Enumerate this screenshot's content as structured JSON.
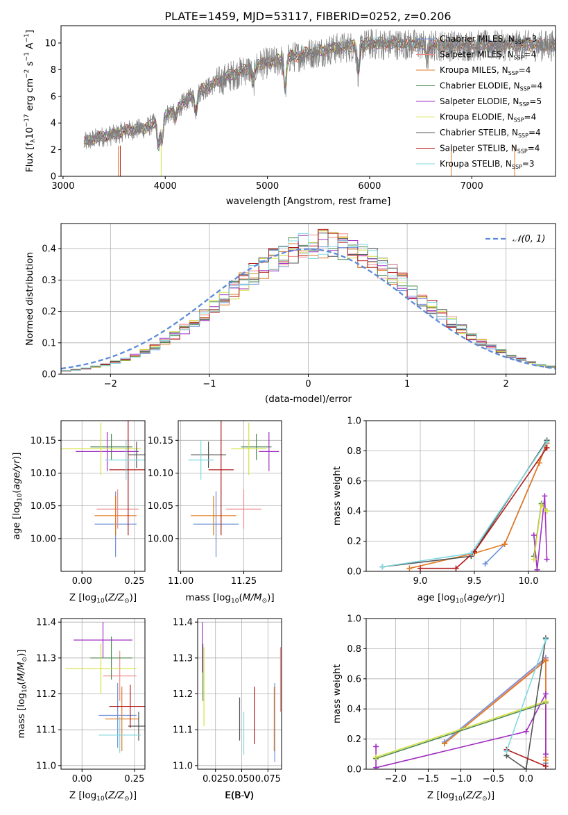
{
  "title": "PLATE=1459, MJD=53117, FIBERID=0252, z=0.206",
  "colors": {
    "Chabrier MILES": "#6a8fd8",
    "Salpeter MILES": "#f08a8a",
    "Kroupa MILES": "#e07a20",
    "Chabrier ELODIE": "#4f8a50",
    "Salpeter ELODIE": "#a030c0",
    "Kroupa ELODIE": "#d4e040",
    "Chabrier STELIB": "#555555",
    "Salpeter STELIB": "#b01818",
    "Kroupa STELIB": "#80d8e0",
    "data": "#808080"
  },
  "chart_data": [
    {
      "id": "spectrum",
      "type": "line",
      "title": "PLATE=1459, MJD=53117, FIBERID=0252, z=0.206",
      "xlabel": "wavelength [Angstrom, rest frame]",
      "ylabel": "Flux [f$_\\lambda$10$^{-17}$ erg cm$^{-2}$ s$^{-1}$ A$^{-1}$]",
      "xlim": [
        2980,
        7820
      ],
      "ylim": [
        0,
        11.3
      ],
      "xticks": [
        "3000",
        "4000",
        "5000",
        "6000",
        "7000"
      ],
      "yticks": [
        "0",
        "2",
        "4",
        "6",
        "8",
        "10"
      ],
      "legend_position": "upper right",
      "legend": [
        {
          "name": "Chabrier MILES",
          "nssp": "3"
        },
        {
          "name": "Salpeter MILES",
          "nssp": "4"
        },
        {
          "name": "Kroupa MILES",
          "nssp": "4"
        },
        {
          "name": "Chabrier ELODIE",
          "nssp": "4"
        },
        {
          "name": "Salpeter ELODIE",
          "nssp": "5"
        },
        {
          "name": "Kroupa ELODIE",
          "nssp": "4"
        },
        {
          "name": "Chabrier STELIB",
          "nssp": "4"
        },
        {
          "name": "Salpeter STELIB",
          "nssp": "4"
        },
        {
          "name": "Kroupa STELIB",
          "nssp": "3"
        }
      ],
      "data_envelope": {
        "x": [
          3200,
          3300,
          3400,
          3500,
          3600,
          3700,
          3800,
          3900,
          4000,
          4100,
          4200,
          4300,
          4400,
          4500,
          4600,
          4700,
          4800,
          4900,
          5000,
          5100,
          5200,
          5300,
          5400,
          5500,
          5600,
          5700,
          5800,
          5900,
          6000,
          6200,
          6400,
          6600,
          6800,
          7000,
          7200,
          7400,
          7600,
          7800
        ],
        "y": [
          2.5,
          2.8,
          3.0,
          3.1,
          3.4,
          3.5,
          3.6,
          4.0,
          4.6,
          5.0,
          5.6,
          6.2,
          6.6,
          7.0,
          7.4,
          7.7,
          8.0,
          8.3,
          8.5,
          8.6,
          8.9,
          9.0,
          9.2,
          9.3,
          9.5,
          9.6,
          9.7,
          9.8,
          9.9,
          9.9,
          9.9,
          9.8,
          9.8,
          9.8,
          9.8,
          9.8,
          9.8,
          9.8
        ]
      }
    },
    {
      "id": "residuals",
      "type": "histogram",
      "xlabel": "(data-model)/error",
      "ylabel": "Normed distribution",
      "xlim": [
        -2.5,
        2.5
      ],
      "ylim": [
        0,
        0.48
      ],
      "xticks": [
        "−2",
        "−1",
        "0",
        "1",
        "2"
      ],
      "yticks": [
        "0.0",
        "0.1",
        "0.2",
        "0.3",
        "0.4"
      ],
      "grid": true,
      "legend": "N(0,1)",
      "normal_curve": {
        "mean": 0,
        "sigma": 1
      },
      "bin_width": 0.1
    },
    {
      "id": "age_vs_Z",
      "type": "errorbar",
      "xlabel": "Z [log10(Z/Z⊙)]",
      "ylabel": "age [log10(age/yr)]",
      "xlim": [
        -0.1,
        0.3
      ],
      "ylim": [
        9.95,
        10.18
      ],
      "xticks": [
        "0.00",
        "0.25"
      ],
      "yticks": [
        "10.00",
        "10.05",
        "10.10",
        "10.15"
      ],
      "grid": true,
      "points": [
        {
          "model": "Chabrier MILES",
          "x": 0.16,
          "xerr": 0.1,
          "y": 10.022,
          "yerr": 0.05
        },
        {
          "model": "Salpeter MILES",
          "x": 0.17,
          "xerr": 0.1,
          "y": 10.045,
          "yerr": 0.03
        },
        {
          "model": "Kroupa MILES",
          "x": 0.16,
          "xerr": 0.1,
          "y": 10.035,
          "yerr": 0.03
        },
        {
          "model": "Chabrier ELODIE",
          "x": 0.14,
          "xerr": 0.1,
          "y": 10.14,
          "yerr": 0.02
        },
        {
          "model": "Salpeter ELODIE",
          "x": 0.12,
          "xerr": 0.15,
          "y": 10.133,
          "yerr": 0.03
        },
        {
          "model": "Kroupa ELODIE",
          "x": 0.09,
          "xerr": 0.19,
          "y": 10.137,
          "yerr": 0.04
        },
        {
          "model": "Chabrier STELIB",
          "x": 0.26,
          "xerr": 0.04,
          "y": 10.128,
          "yerr": 0.02
        },
        {
          "model": "Salpeter STELIB",
          "x": 0.22,
          "xerr": 0.09,
          "y": 10.105,
          "yerr": 0.1
        },
        {
          "model": "Kroupa STELIB",
          "x": 0.21,
          "xerr": 0.1,
          "y": 10.12,
          "yerr": 0.03
        }
      ]
    },
    {
      "id": "age_vs_mass",
      "type": "errorbar",
      "xlabel": "mass [log10(M/M⊙)]",
      "ylabel": "",
      "xlim": [
        10.99,
        11.4
      ],
      "ylim": [
        9.95,
        10.18
      ],
      "xticks": [
        "11.00",
        "11.25"
      ],
      "yticks": [
        "10.00",
        "10.05",
        "10.10",
        "10.15"
      ],
      "grid": true,
      "points": [
        {
          "model": "Chabrier MILES",
          "x": 11.14,
          "xerr": 0.09,
          "y": 10.022,
          "yerr": 0.05
        },
        {
          "model": "Salpeter MILES",
          "x": 11.25,
          "xerr": 0.07,
          "y": 10.045,
          "yerr": 0.03
        },
        {
          "model": "Kroupa MILES",
          "x": 11.13,
          "xerr": 0.09,
          "y": 10.035,
          "yerr": 0.03
        },
        {
          "model": "Chabrier ELODIE",
          "x": 11.3,
          "xerr": 0.06,
          "y": 10.14,
          "yerr": 0.02
        },
        {
          "model": "Salpeter ELODIE",
          "x": 11.35,
          "xerr": 0.04,
          "y": 10.133,
          "yerr": 0.03
        },
        {
          "model": "Kroupa ELODIE",
          "x": 11.27,
          "xerr": 0.07,
          "y": 10.137,
          "yerr": 0.04
        },
        {
          "model": "Chabrier STELIB",
          "x": 11.11,
          "xerr": 0.07,
          "y": 10.128,
          "yerr": 0.02
        },
        {
          "model": "Salpeter STELIB",
          "x": 11.16,
          "xerr": 0.05,
          "y": 10.105,
          "yerr": 0.1
        },
        {
          "model": "Kroupa STELIB",
          "x": 11.08,
          "xerr": 0.05,
          "y": 10.12,
          "yerr": 0.03
        }
      ]
    },
    {
      "id": "mass_weight_vs_age",
      "type": "line",
      "xlabel": "age [log10(age/yr)]",
      "ylabel": "mass weight",
      "xlim": [
        8.5,
        10.25
      ],
      "ylim": [
        0,
        1.0
      ],
      "xticks": [
        "9.0",
        "9.5",
        "10.0"
      ],
      "yticks": [
        "0.0",
        "0.2",
        "0.4",
        "0.6",
        "0.8",
        "1.0"
      ],
      "grid": true,
      "series": [
        {
          "model": "Chabrier MILES",
          "x": [
            9.6,
            9.78,
            10.1,
            10.17
          ],
          "y": [
            0.05,
            0.18,
            0.72,
            0.86
          ]
        },
        {
          "model": "Salpeter MILES",
          "x": [
            9.78,
            10.1,
            10.17
          ],
          "y": [
            0.18,
            0.72,
            0.85
          ]
        },
        {
          "model": "Kroupa MILES",
          "x": [
            8.9,
            9.5,
            9.78,
            10.1,
            10.17
          ],
          "y": [
            0.02,
            0.12,
            0.18,
            0.72,
            0.85
          ]
        },
        {
          "model": "Chabrier ELODIE",
          "x": [
            10.05,
            10.12,
            10.17
          ],
          "y": [
            0.1,
            0.45,
            0.4
          ]
        },
        {
          "model": "Salpeter ELODIE",
          "x": [
            10.05,
            10.08,
            10.15,
            10.17
          ],
          "y": [
            0.24,
            0.01,
            0.5,
            0.08
          ]
        },
        {
          "model": "Kroupa ELODIE",
          "x": [
            10.05,
            10.12,
            10.17
          ],
          "y": [
            0.08,
            0.44,
            0.4
          ]
        },
        {
          "model": "Chabrier STELIB",
          "x": [
            8.65,
            9.47,
            10.17
          ],
          "y": [
            0.03,
            0.1,
            0.87
          ]
        },
        {
          "model": "Salpeter STELIB",
          "x": [
            9.0,
            9.33,
            9.5,
            10.17
          ],
          "y": [
            0.02,
            0.02,
            0.13,
            0.82
          ]
        },
        {
          "model": "Kroupa STELIB",
          "x": [
            8.65,
            9.47,
            10.17
          ],
          "y": [
            0.03,
            0.12,
            0.86
          ]
        }
      ]
    },
    {
      "id": "mass_vs_Z",
      "type": "errorbar",
      "xlabel": "Z [log10(Z/Z⊙)]",
      "ylabel": "mass [log10(M/M⊙)]",
      "xlim": [
        -0.1,
        0.3
      ],
      "ylim": [
        10.99,
        11.41
      ],
      "xticks": [
        "0.00",
        "0.25"
      ],
      "yticks": [
        "11.0",
        "11.1",
        "11.2",
        "11.3",
        "11.4"
      ],
      "grid": true,
      "points": [
        {
          "model": "Chabrier MILES",
          "x": 0.17,
          "xerr": 0.09,
          "y": 11.14,
          "yerr": 0.09
        },
        {
          "model": "Salpeter MILES",
          "x": 0.18,
          "xerr": 0.08,
          "y": 11.25,
          "yerr": 0.07
        },
        {
          "model": "Kroupa MILES",
          "x": 0.19,
          "xerr": 0.08,
          "y": 11.13,
          "yerr": 0.09
        },
        {
          "model": "Chabrier ELODIE",
          "x": 0.14,
          "xerr": 0.1,
          "y": 11.3,
          "yerr": 0.06
        },
        {
          "model": "Salpeter ELODIE",
          "x": 0.1,
          "xerr": 0.14,
          "y": 11.35,
          "yerr": 0.05
        },
        {
          "model": "Kroupa ELODIE",
          "x": 0.09,
          "xerr": 0.17,
          "y": 11.27,
          "yerr": 0.07
        },
        {
          "model": "Chabrier STELIB",
          "x": 0.27,
          "xerr": 0.05,
          "y": 11.11,
          "yerr": 0.04
        },
        {
          "model": "Salpeter STELIB",
          "x": 0.23,
          "xerr": 0.1,
          "y": 11.165,
          "yerr": 0.06
        },
        {
          "model": "Kroupa STELIB",
          "x": 0.18,
          "xerr": 0.1,
          "y": 11.085,
          "yerr": 0.05
        }
      ]
    },
    {
      "id": "mass_vs_ebv",
      "type": "errorbar",
      "xlabel": "E(B-V)",
      "ylabel": "",
      "xlim": [
        0.008,
        0.088
      ],
      "ylim": [
        10.99,
        11.41
      ],
      "xticks": [
        "0.025",
        "0.050",
        "0.075"
      ],
      "yticks": [
        "11.0",
        "11.1",
        "11.2",
        "11.3",
        "11.4"
      ],
      "grid": true,
      "points": [
        {
          "model": "Chabrier MILES",
          "x": 0.0815,
          "y": 11.12,
          "yerr": 0.11
        },
        {
          "model": "Salpeter MILES",
          "x": 0.087,
          "y": 11.24,
          "yerr": 0.09
        },
        {
          "model": "Kroupa MILES",
          "x": 0.081,
          "y": 11.13,
          "yerr": 0.09
        },
        {
          "model": "Chabrier ELODIE",
          "x": 0.013,
          "y": 11.26,
          "yerr": 0.08
        },
        {
          "model": "Salpeter ELODIE",
          "x": 0.0125,
          "y": 11.33,
          "yerr": 0.07
        },
        {
          "model": "Kroupa ELODIE",
          "x": 0.014,
          "y": 11.22,
          "yerr": 0.11
        },
        {
          "model": "Chabrier STELIB",
          "x": 0.048,
          "y": 11.13,
          "yerr": 0.06
        },
        {
          "model": "Salpeter STELIB",
          "x": 0.062,
          "y": 11.14,
          "yerr": 0.08
        },
        {
          "model": "Kroupa STELIB",
          "x": 0.052,
          "y": 11.09,
          "yerr": 0.06
        }
      ]
    },
    {
      "id": "mass_weight_vs_Z",
      "type": "line",
      "xlabel": "Z [log10(Z/Z⊙)]",
      "ylabel": "mass weight",
      "xlim": [
        -2.45,
        0.45
      ],
      "ylim": [
        0,
        1.0
      ],
      "xticks": [
        "−2.0",
        "−1.5",
        "−1.0",
        "−0.5",
        "0.0"
      ],
      "yticks": [
        "0.0",
        "0.2",
        "0.4",
        "0.6",
        "0.8",
        "1.0"
      ],
      "grid": true,
      "series": [
        {
          "model": "Chabrier MILES",
          "x": [
            -1.25,
            0.3,
            0.3
          ],
          "y": [
            0.18,
            0.74,
            0.04
          ]
        },
        {
          "model": "Salpeter MILES",
          "x": [
            -1.25,
            0.3,
            0.3
          ],
          "y": [
            0.17,
            0.73,
            0.08
          ]
        },
        {
          "model": "Kroupa MILES",
          "x": [
            -1.25,
            0.3,
            0.3
          ],
          "y": [
            0.17,
            0.72,
            0.06
          ]
        },
        {
          "model": "Chabrier ELODIE",
          "x": [
            -2.3,
            0.3
          ],
          "y": [
            0.07,
            0.44
          ]
        },
        {
          "model": "Salpeter ELODIE",
          "x": [
            -2.3,
            -2.3,
            0.0,
            0.3,
            0.3
          ],
          "y": [
            0.15,
            0.01,
            0.25,
            0.5,
            0.1
          ]
        },
        {
          "model": "Kroupa ELODIE",
          "x": [
            -2.3,
            0.3
          ],
          "y": [
            0.08,
            0.45
          ]
        },
        {
          "model": "Chabrier STELIB",
          "x": [
            -0.3,
            0.0,
            0.3
          ],
          "y": [
            0.09,
            0.0,
            0.87
          ]
        },
        {
          "model": "Salpeter STELIB",
          "x": [
            -0.3,
            0.3
          ],
          "y": [
            0.13,
            0.02
          ]
        },
        {
          "model": "Kroupa STELIB",
          "x": [
            -0.3,
            0.3
          ],
          "y": [
            0.12,
            0.86
          ]
        }
      ]
    }
  ]
}
